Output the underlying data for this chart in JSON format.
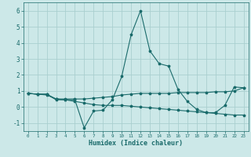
{
  "xlabel": "Humidex (Indice chaleur)",
  "ylabel": "",
  "background_color": "#cce8e8",
  "grid_color": "#aacfcf",
  "line_color": "#1a6b6b",
  "xlim": [
    -0.5,
    23.5
  ],
  "ylim": [
    -1.5,
    6.5
  ],
  "xticks": [
    0,
    1,
    2,
    3,
    4,
    5,
    6,
    7,
    8,
    9,
    10,
    11,
    12,
    13,
    14,
    15,
    16,
    17,
    18,
    19,
    20,
    21,
    22,
    23
  ],
  "yticks": [
    -1,
    0,
    1,
    2,
    3,
    4,
    5,
    6
  ],
  "line1_x": [
    0,
    1,
    2,
    3,
    4,
    5,
    6,
    7,
    8,
    9,
    10,
    11,
    12,
    13,
    14,
    15,
    16,
    17,
    18,
    19,
    20,
    21,
    22,
    23
  ],
  "line1_y": [
    0.85,
    0.8,
    0.8,
    0.45,
    0.45,
    0.45,
    -1.3,
    -0.25,
    -0.2,
    0.45,
    1.9,
    4.5,
    6.0,
    3.5,
    2.7,
    2.55,
    1.1,
    0.35,
    -0.15,
    -0.35,
    -0.35,
    0.1,
    1.25,
    1.2
  ],
  "line2_x": [
    0,
    1,
    2,
    3,
    4,
    5,
    6,
    7,
    8,
    9,
    10,
    11,
    12,
    13,
    14,
    15,
    16,
    17,
    18,
    19,
    20,
    21,
    22,
    23
  ],
  "line2_y": [
    0.85,
    0.8,
    0.8,
    0.5,
    0.5,
    0.5,
    0.5,
    0.55,
    0.6,
    0.65,
    0.75,
    0.8,
    0.85,
    0.85,
    0.85,
    0.85,
    0.9,
    0.9,
    0.9,
    0.9,
    0.95,
    0.95,
    1.0,
    1.2
  ],
  "line3_x": [
    0,
    1,
    2,
    3,
    4,
    5,
    6,
    7,
    8,
    9,
    10,
    11,
    12,
    13,
    14,
    15,
    16,
    17,
    18,
    19,
    20,
    21,
    22,
    23
  ],
  "line3_y": [
    0.85,
    0.8,
    0.75,
    0.5,
    0.45,
    0.35,
    0.25,
    0.15,
    0.1,
    0.1,
    0.1,
    0.05,
    0.0,
    -0.05,
    -0.1,
    -0.15,
    -0.2,
    -0.25,
    -0.3,
    -0.35,
    -0.4,
    -0.45,
    -0.5,
    -0.5
  ]
}
